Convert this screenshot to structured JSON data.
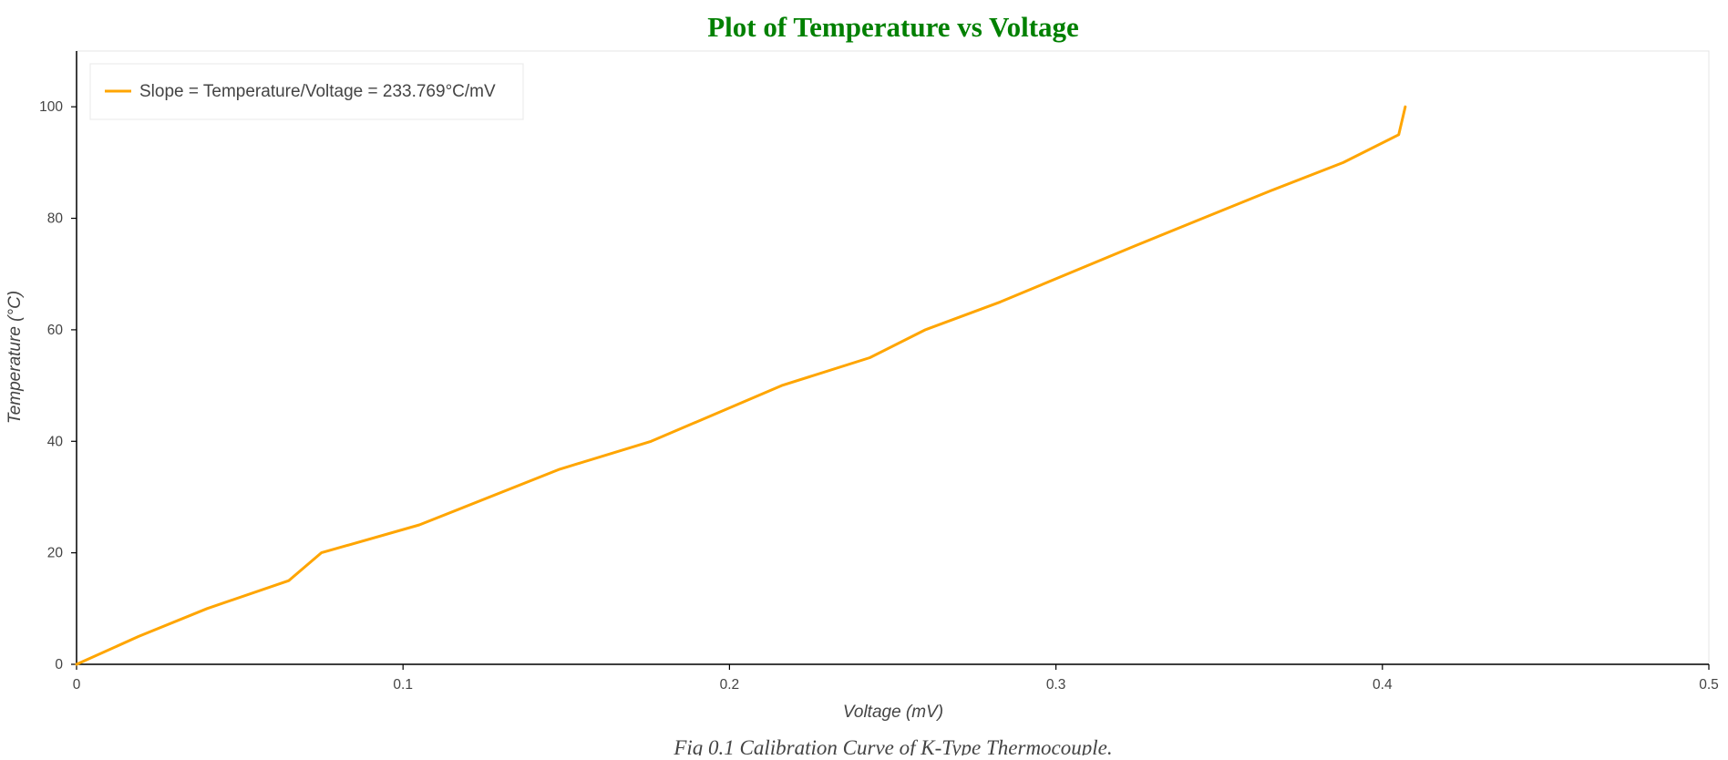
{
  "chart_data": {
    "type": "line",
    "title": "Plot of Temperature vs Voltage",
    "xlabel": "Voltage (mV)",
    "ylabel": "Temperature (°C)",
    "caption": "Fig 0.1 Calibration Curve of K-Type Thermocouple.",
    "xlim": [
      0,
      0.5
    ],
    "ylim": [
      0,
      110
    ],
    "x_ticks": [
      0,
      0.1,
      0.2,
      0.3,
      0.4,
      0.5
    ],
    "x_tick_labels": [
      "0",
      "0.1",
      "0.2",
      "0.3",
      "0.4",
      "0.5"
    ],
    "y_ticks": [
      0,
      20,
      40,
      60,
      80,
      100
    ],
    "y_tick_labels": [
      "0",
      "20",
      "40",
      "60",
      "80",
      "100"
    ],
    "grid": false,
    "legend_position": "top-left",
    "series": [
      {
        "name": "Slope = Temperature/Voltage = 233.769°C/mV",
        "color": "#FFA500",
        "x": [
          0,
          0.019,
          0.04,
          0.065,
          0.075,
          0.105,
          0.148,
          0.176,
          0.216,
          0.243,
          0.26,
          0.283,
          0.324,
          0.345,
          0.366,
          0.388,
          0.405,
          0.407
        ],
        "y": [
          0,
          5,
          10,
          15,
          20,
          25,
          35,
          40,
          50,
          55,
          60,
          65,
          75,
          80,
          85,
          90,
          95,
          100
        ]
      }
    ]
  }
}
